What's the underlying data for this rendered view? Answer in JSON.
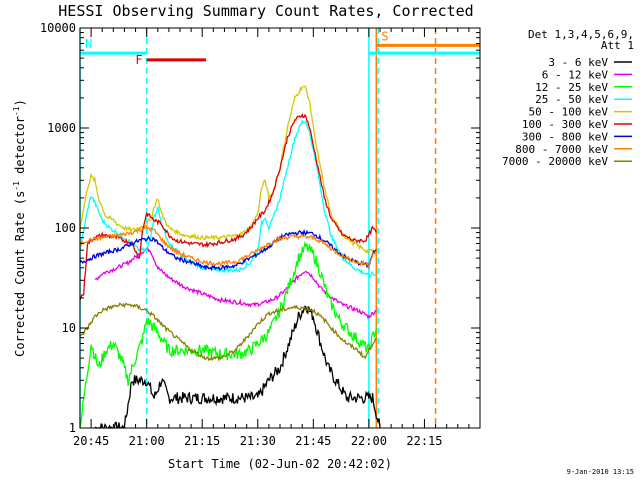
{
  "chart_data": {
    "type": "line",
    "title": "HESSI Observing Summary Count Rates, Corrected",
    "xlabel": "Start Time (02-Jun-02 20:42:02)",
    "ylabel": "Corrected Count Rate (s⁻¹ detector⁻¹)",
    "ylabel_main": "Corrected Count Rate (s",
    "ylabel_exp1": "-1",
    "ylabel_mid": " detector",
    "ylabel_exp2": "-1",
    "ylabel_end": ")",
    "x_ticks": [
      "20:45",
      "21:00",
      "21:15",
      "21:30",
      "21:45",
      "22:00",
      "22:15"
    ],
    "x_tick_minutes": [
      45,
      60,
      75,
      90,
      105,
      120,
      135
    ],
    "xlim_minutes": [
      42,
      150
    ],
    "y_scale": "log",
    "ylim": [
      1,
      10000
    ],
    "y_ticks": [
      "1",
      "10",
      "100",
      "1000",
      "10000"
    ],
    "legend_header": [
      "Det 1,3,4,5,6,9,",
      "Att 1"
    ],
    "series": [
      {
        "name": "3 - 6 keV",
        "color": "#000000",
        "points": [
          [
            46,
            1
          ],
          [
            50,
            1
          ],
          [
            52,
            1
          ],
          [
            54,
            1
          ],
          [
            56,
            3
          ],
          [
            58,
            3
          ],
          [
            60,
            3
          ],
          [
            62,
            2
          ],
          [
            64,
            3
          ],
          [
            66,
            2
          ],
          [
            70,
            2
          ],
          [
            75,
            2
          ],
          [
            80,
            2
          ],
          [
            85,
            2
          ],
          [
            90,
            2
          ],
          [
            93,
            3
          ],
          [
            96,
            4
          ],
          [
            99,
            8
          ],
          [
            101,
            13
          ],
          [
            103,
            17
          ],
          [
            105,
            13
          ],
          [
            107,
            7
          ],
          [
            109,
            4
          ],
          [
            111,
            3
          ],
          [
            114,
            2
          ],
          [
            118,
            2
          ],
          [
            121,
            2
          ],
          [
            123,
            1
          ]
        ]
      },
      {
        "name": "6 - 12 keV",
        "color": "#e800e8",
        "points": [
          [
            46,
            30
          ],
          [
            48,
            35
          ],
          [
            52,
            40
          ],
          [
            55,
            45
          ],
          [
            58,
            55
          ],
          [
            60,
            62
          ],
          [
            61,
            60
          ],
          [
            63,
            40
          ],
          [
            66,
            32
          ],
          [
            70,
            26
          ],
          [
            75,
            22
          ],
          [
            80,
            19
          ],
          [
            85,
            18
          ],
          [
            89,
            17
          ],
          [
            92,
            18
          ],
          [
            95,
            20
          ],
          [
            98,
            25
          ],
          [
            101,
            33
          ],
          [
            103,
            38
          ],
          [
            105,
            32
          ],
          [
            107,
            25
          ],
          [
            110,
            20
          ],
          [
            113,
            17
          ],
          [
            117,
            15
          ],
          [
            120,
            13
          ],
          [
            121,
            14
          ],
          [
            122,
            15
          ]
        ]
      },
      {
        "name": "12 - 25 keV",
        "color": "#00ff00",
        "points": [
          [
            42,
            1
          ],
          [
            45,
            7
          ],
          [
            47,
            4
          ],
          [
            49,
            6
          ],
          [
            51,
            7
          ],
          [
            53,
            5
          ],
          [
            55,
            3
          ],
          [
            57,
            5
          ],
          [
            59,
            8
          ],
          [
            60,
            12
          ],
          [
            61,
            11
          ],
          [
            63,
            9
          ],
          [
            66,
            6
          ],
          [
            70,
            6
          ],
          [
            75,
            6
          ],
          [
            80,
            5.5
          ],
          [
            85,
            5.5
          ],
          [
            88,
            6
          ],
          [
            90,
            7
          ],
          [
            93,
            9
          ],
          [
            96,
            15
          ],
          [
            99,
            30
          ],
          [
            101,
            50
          ],
          [
            103,
            65
          ],
          [
            105,
            55
          ],
          [
            107,
            35
          ],
          [
            109,
            20
          ],
          [
            112,
            12
          ],
          [
            115,
            9
          ],
          [
            118,
            7
          ],
          [
            120,
            6
          ],
          [
            121,
            8
          ],
          [
            122,
            10
          ]
        ]
      },
      {
        "name": "25 - 50 keV",
        "color": "#00ffff",
        "points": [
          [
            42,
            60
          ],
          [
            44,
            150
          ],
          [
            45,
            210
          ],
          [
            46,
            180
          ],
          [
            48,
            120
          ],
          [
            50,
            100
          ],
          [
            52,
            90
          ],
          [
            54,
            80
          ],
          [
            56,
            70
          ],
          [
            58,
            60
          ],
          [
            60,
            60
          ],
          [
            61,
            80
          ],
          [
            62,
            130
          ],
          [
            63,
            160
          ],
          [
            64,
            110
          ],
          [
            66,
            70
          ],
          [
            70,
            50
          ],
          [
            75,
            40
          ],
          [
            80,
            38
          ],
          [
            85,
            38
          ],
          [
            88,
            45
          ],
          [
            90,
            60
          ],
          [
            91,
            110
          ],
          [
            92,
            130
          ],
          [
            93,
            100
          ],
          [
            94,
            120
          ],
          [
            96,
            200
          ],
          [
            98,
            400
          ],
          [
            100,
            800
          ],
          [
            102,
            1150
          ],
          [
            103,
            1150
          ],
          [
            104,
            900
          ],
          [
            106,
            400
          ],
          [
            108,
            150
          ],
          [
            110,
            80
          ],
          [
            113,
            50
          ],
          [
            116,
            40
          ],
          [
            119,
            35
          ],
          [
            120,
            33
          ],
          [
            121,
            35
          ],
          [
            122,
            33
          ]
        ]
      },
      {
        "name": "50 - 100 keV",
        "color": "#d4c800",
        "points": [
          [
            42,
            100
          ],
          [
            44,
            250
          ],
          [
            45,
            330
          ],
          [
            46,
            300
          ],
          [
            47,
            200
          ],
          [
            49,
            130
          ],
          [
            51,
            120
          ],
          [
            52,
            110
          ],
          [
            54,
            100
          ],
          [
            56,
            95
          ],
          [
            58,
            100
          ],
          [
            60,
            110
          ],
          [
            61,
            120
          ],
          [
            62,
            160
          ],
          [
            63,
            200
          ],
          [
            64,
            140
          ],
          [
            66,
            100
          ],
          [
            70,
            85
          ],
          [
            75,
            80
          ],
          [
            80,
            80
          ],
          [
            85,
            85
          ],
          [
            88,
            100
          ],
          [
            90,
            140
          ],
          [
            91,
            250
          ],
          [
            92,
            300
          ],
          [
            93,
            200
          ],
          [
            94,
            220
          ],
          [
            96,
            400
          ],
          [
            98,
            1000
          ],
          [
            100,
            2000
          ],
          [
            102,
            2600
          ],
          [
            103,
            2500
          ],
          [
            104,
            1800
          ],
          [
            106,
            600
          ],
          [
            108,
            250
          ],
          [
            110,
            130
          ],
          [
            113,
            85
          ],
          [
            116,
            70
          ],
          [
            119,
            60
          ],
          [
            120,
            58
          ],
          [
            121,
            60
          ],
          [
            122,
            55
          ]
        ]
      },
      {
        "name": "100 - 300 keV",
        "color": "#e00000",
        "points": [
          [
            42,
            20
          ],
          [
            43,
            22
          ],
          [
            44,
            70
          ],
          [
            46,
            80
          ],
          [
            48,
            85
          ],
          [
            52,
            80
          ],
          [
            56,
            70
          ],
          [
            58,
            50
          ],
          [
            59,
            100
          ],
          [
            60,
            140
          ],
          [
            61,
            130
          ],
          [
            62,
            120
          ],
          [
            64,
            110
          ],
          [
            66,
            85
          ],
          [
            68,
            75
          ],
          [
            72,
            70
          ],
          [
            76,
            68
          ],
          [
            80,
            72
          ],
          [
            84,
            78
          ],
          [
            86,
            85
          ],
          [
            88,
            100
          ],
          [
            90,
            125
          ],
          [
            92,
            150
          ],
          [
            94,
            220
          ],
          [
            96,
            400
          ],
          [
            98,
            800
          ],
          [
            100,
            1200
          ],
          [
            102,
            1350
          ],
          [
            103,
            1300
          ],
          [
            104,
            1000
          ],
          [
            106,
            450
          ],
          [
            108,
            200
          ],
          [
            110,
            120
          ],
          [
            113,
            85
          ],
          [
            116,
            75
          ],
          [
            119,
            75
          ],
          [
            120,
            85
          ],
          [
            121,
            100
          ],
          [
            122,
            90
          ]
        ]
      },
      {
        "name": "300 - 800 keV",
        "color": "#0000e0",
        "points": [
          [
            42,
            45
          ],
          [
            44,
            48
          ],
          [
            46,
            52
          ],
          [
            48,
            55
          ],
          [
            50,
            58
          ],
          [
            53,
            62
          ],
          [
            56,
            70
          ],
          [
            58,
            75
          ],
          [
            60,
            78
          ],
          [
            62,
            78
          ],
          [
            65,
            60
          ],
          [
            68,
            50
          ],
          [
            72,
            45
          ],
          [
            76,
            40
          ],
          [
            80,
            40
          ],
          [
            84,
            42
          ],
          [
            87,
            48
          ],
          [
            90,
            55
          ],
          [
            93,
            65
          ],
          [
            96,
            80
          ],
          [
            99,
            88
          ],
          [
            102,
            90
          ],
          [
            105,
            88
          ],
          [
            108,
            75
          ],
          [
            111,
            60
          ],
          [
            114,
            50
          ],
          [
            117,
            45
          ],
          [
            120,
            42
          ],
          [
            121,
            55
          ],
          [
            122,
            60
          ]
        ]
      },
      {
        "name": "800 - 7000 keV",
        "color": "#ff7f00",
        "points": [
          [
            42,
            70
          ],
          [
            44,
            75
          ],
          [
            46,
            78
          ],
          [
            48,
            80
          ],
          [
            50,
            82
          ],
          [
            53,
            85
          ],
          [
            56,
            90
          ],
          [
            58,
            95
          ],
          [
            60,
            100
          ],
          [
            62,
            95
          ],
          [
            65,
            70
          ],
          [
            68,
            58
          ],
          [
            72,
            50
          ],
          [
            76,
            45
          ],
          [
            80,
            44
          ],
          [
            84,
            46
          ],
          [
            87,
            52
          ],
          [
            90,
            60
          ],
          [
            93,
            70
          ],
          [
            96,
            78
          ],
          [
            99,
            82
          ],
          [
            102,
            82
          ],
          [
            105,
            80
          ],
          [
            108,
            70
          ],
          [
            111,
            58
          ],
          [
            114,
            50
          ],
          [
            117,
            45
          ],
          [
            120,
            43
          ],
          [
            121,
            55
          ],
          [
            122,
            58
          ]
        ]
      },
      {
        "name": "7000 - 20000 keV",
        "color": "#888000",
        "points": [
          [
            42,
            8
          ],
          [
            44,
            10
          ],
          [
            46,
            13
          ],
          [
            48,
            15
          ],
          [
            50,
            16
          ],
          [
            53,
            17
          ],
          [
            56,
            17
          ],
          [
            58,
            16
          ],
          [
            60,
            15
          ],
          [
            62,
            13
          ],
          [
            65,
            10
          ],
          [
            68,
            8
          ],
          [
            72,
            6
          ],
          [
            76,
            5
          ],
          [
            80,
            5
          ],
          [
            84,
            6
          ],
          [
            87,
            8
          ],
          [
            90,
            11
          ],
          [
            93,
            14
          ],
          [
            96,
            15
          ],
          [
            99,
            16
          ],
          [
            102,
            16
          ],
          [
            105,
            15
          ],
          [
            108,
            12
          ],
          [
            111,
            9
          ],
          [
            114,
            7
          ],
          [
            117,
            6
          ],
          [
            119,
            5
          ],
          [
            120,
            6
          ],
          [
            121,
            7
          ],
          [
            122,
            8
          ]
        ]
      }
    ],
    "flags": [
      {
        "label": "N",
        "color": "#00ffff",
        "start": 42,
        "end": 60,
        "y": 5600
      },
      {
        "label": "F",
        "color": "#e00000",
        "start": 60,
        "end": 76,
        "y": 4800
      },
      {
        "label": "S",
        "color": "#ff7f00",
        "start": 122,
        "end": 150,
        "y": 6700
      },
      {
        "label": "",
        "color": "#00ffff",
        "start": 120,
        "end": 150,
        "y": 5600
      }
    ],
    "vlines": [
      {
        "at": 42,
        "color": "#00ffff",
        "style": "solid"
      },
      {
        "at": 60,
        "color": "#00ffff",
        "style": "dashed"
      },
      {
        "at": 120,
        "color": "#00ffff",
        "style": "solid"
      },
      {
        "at": 122,
        "color": "#ff7f00",
        "style": "solid"
      },
      {
        "at": 122.5,
        "color": "#00ffff",
        "style": "dashed"
      },
      {
        "at": 138,
        "color": "#ff7f00",
        "style": "dashed"
      }
    ]
  },
  "timestamp": "9-Jan-2010 13:15"
}
